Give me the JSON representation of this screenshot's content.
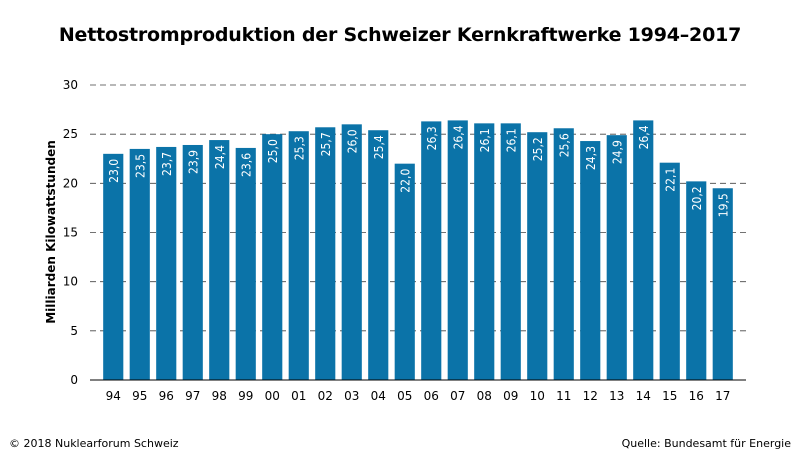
{
  "chart_data": {
    "type": "bar",
    "title": "Nettostromproduktion der Schweizer Kernkraftwerke 1994–2017",
    "ylabel": "Milliarden Kilowattstunden",
    "xlabel": "",
    "categories": [
      "94",
      "95",
      "96",
      "97",
      "98",
      "99",
      "00",
      "01",
      "02",
      "03",
      "04",
      "05",
      "06",
      "07",
      "08",
      "09",
      "10",
      "11",
      "12",
      "13",
      "14",
      "15",
      "16",
      "17"
    ],
    "values": [
      23.0,
      23.5,
      23.7,
      23.9,
      24.4,
      23.6,
      25.0,
      25.3,
      25.7,
      26.0,
      25.4,
      22.0,
      26.3,
      26.4,
      26.1,
      26.1,
      25.2,
      25.6,
      24.3,
      24.9,
      26.4,
      22.1,
      20.2,
      19.5
    ],
    "value_labels": [
      "23,0",
      "23,5",
      "23,7",
      "23,9",
      "24,4",
      "23,6",
      "25,0",
      "25,3",
      "25,7",
      "26,0",
      "25,4",
      "22,0",
      "26,3",
      "26,4",
      "26,1",
      "26,1",
      "25,2",
      "25,6",
      "24,3",
      "24,9",
      "26,4",
      "22,1",
      "20,2",
      "19,5"
    ],
    "ylim": [
      0,
      30
    ],
    "yticks": [
      0,
      5,
      10,
      15,
      20,
      25,
      30
    ],
    "grid": true,
    "bar_color": "#0b73a8"
  },
  "footer": {
    "copyright": "© 2018 Nuklearforum Schweiz",
    "source": "Quelle: Bundesamt für Energie"
  }
}
